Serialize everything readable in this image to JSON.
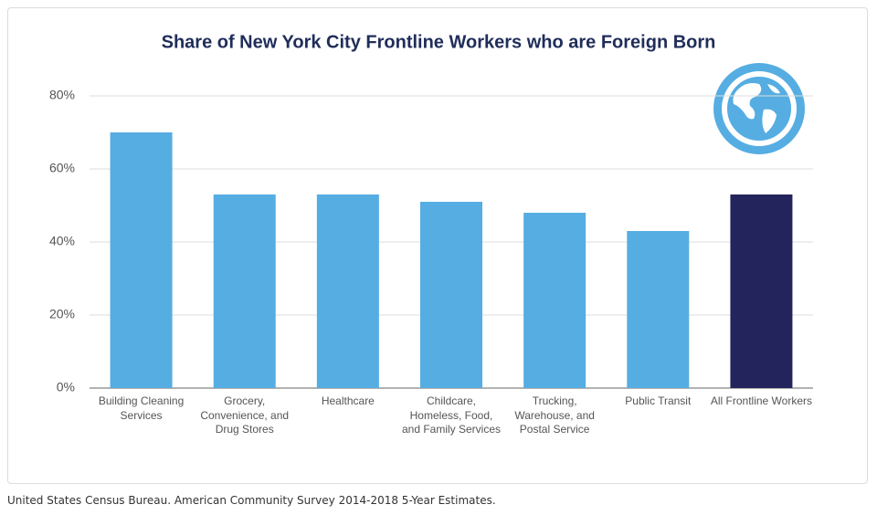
{
  "chart_data": {
    "type": "bar",
    "title": "Share of New York City Frontline Workers who are Foreign Born",
    "categories": [
      "Building Cleaning Services",
      "Grocery, Convenience, and Drug Stores",
      "Healthcare",
      "Childcare, Homeless, Food, and Family Services",
      "Trucking, Warehouse, and Postal Service",
      "Public Transit",
      "All Frontline Workers"
    ],
    "values": [
      70,
      53,
      53,
      51,
      48,
      43,
      53
    ],
    "colors": [
      "#55ade2",
      "#55ade2",
      "#55ade2",
      "#55ade2",
      "#55ade2",
      "#55ade2",
      "#24245c"
    ],
    "ylim": [
      0,
      80
    ],
    "yticks": [
      {
        "value": 0,
        "label": "0%"
      },
      {
        "value": 20,
        "label": "20%"
      },
      {
        "value": 40,
        "label": "40%"
      },
      {
        "value": 60,
        "label": "60%"
      },
      {
        "value": 80,
        "label": "80%"
      }
    ],
    "grid": true
  },
  "source": "United States Census Bureau. American Community Survey 2014-2018 5-Year Estimates."
}
